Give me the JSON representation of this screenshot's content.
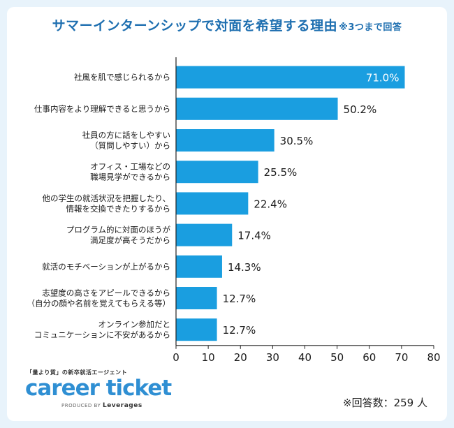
{
  "header": {
    "title": "サマーインターンシップで対面を希望する理由",
    "title_note": "※3つまで回答"
  },
  "chart_data": {
    "type": "bar",
    "orientation": "horizontal",
    "categories": [
      "社風を肌で感じられるから",
      "仕事内容をより理解できると思うから",
      "社員の方に話をしやすい\n（質問しやすい）から",
      "オフィス・工場などの\n職場見学ができるから",
      "他の学生の就活状況を把握したり、\n情報を交換できたりするから",
      "プログラム的に対面のほうが\n満足度が高そうだから",
      "就活のモチベーションが上がるから",
      "志望度の高さをアピールできるから\n（自分の顔や名前を覚えてもらえる等）",
      "オンライン参加だと\nコミュニケーションに不安があるから"
    ],
    "values": [
      71.0,
      50.2,
      30.5,
      25.5,
      22.4,
      17.4,
      14.3,
      12.7,
      12.7
    ],
    "value_labels": [
      "71.0%",
      "50.2%",
      "30.5%",
      "25.5%",
      "22.4%",
      "17.4%",
      "14.3%",
      "12.7%",
      "12.7%"
    ],
    "xlim": [
      0,
      80
    ],
    "xticks": [
      0,
      10,
      20,
      30,
      40,
      50,
      60,
      70,
      80
    ],
    "bar_color": "#1a9ee0",
    "grid": false
  },
  "footer": {
    "brand_tagline": "「量より質」の新卒就活エージェント",
    "brand_name": "career ticket",
    "produced_by": "PRODUCED BY",
    "produced_company": "Leverages",
    "respondents": "※回答数：259 人"
  }
}
